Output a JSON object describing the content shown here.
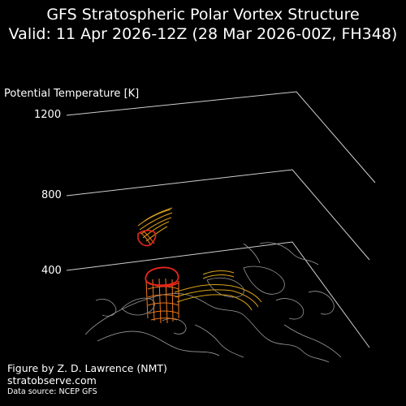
{
  "chart_data": {
    "type": "3d-isosurface",
    "title_line1": "GFS Stratospheric Polar Vortex Structure",
    "title_line2": "Valid: 11 Apr 2026-12Z  (28 Mar 2026-00Z, FH348)",
    "zlabel": "Potential Temperature [K]",
    "zticks": [
      400,
      800,
      1200
    ],
    "zlim": [
      400,
      1200
    ],
    "colors": {
      "vortex_edge": "#e8261c",
      "vortex_mid": "#f07a1c",
      "vortex_outer": "#d9a01a",
      "coastline": "#9a9a9a",
      "axes": "#cfcfcf"
    }
  },
  "credit": {
    "line1": "Figure by Z. D. Lawrence (NMT)",
    "line2": "stratobserve.com",
    "source": "Data source: NCEP GFS"
  }
}
